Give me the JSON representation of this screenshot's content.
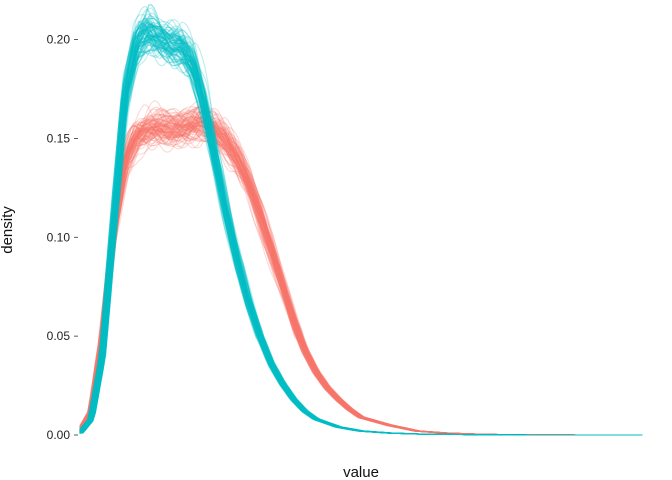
{
  "chart_data": {
    "type": "line",
    "title": "",
    "xlabel": "value",
    "ylabel": "density",
    "xlim": [
      0,
      1
    ],
    "ylim": [
      0,
      0.22
    ],
    "yticks": [
      0.0,
      0.05,
      0.1,
      0.15,
      0.2
    ],
    "ytick_labels": [
      "0.00",
      "0.05",
      "0.10",
      "0.15",
      "0.20"
    ],
    "xticks_shown": false,
    "grid": false,
    "legend": "none",
    "replicates_per_series": 100,
    "series": [
      {
        "color": "#F8766D",
        "x": [
          0.0,
          0.02,
          0.04,
          0.06,
          0.08,
          0.1,
          0.12,
          0.14,
          0.16,
          0.18,
          0.2,
          0.22,
          0.24,
          0.26,
          0.28,
          0.3,
          0.32,
          0.34,
          0.36,
          0.38,
          0.4,
          0.42,
          0.44,
          0.46,
          0.48,
          0.5,
          0.55,
          0.6,
          0.65,
          0.7,
          0.75,
          0.8,
          0.9,
          1.0
        ],
        "values": [
          0.002,
          0.012,
          0.05,
          0.104,
          0.139,
          0.151,
          0.155,
          0.156,
          0.155,
          0.156,
          0.157,
          0.158,
          0.155,
          0.149,
          0.14,
          0.128,
          0.112,
          0.094,
          0.076,
          0.058,
          0.043,
          0.032,
          0.024,
          0.018,
          0.013,
          0.009,
          0.005,
          0.002,
          0.001,
          0.0005,
          0.0002,
          0.0001,
          0.0,
          0.0
        ]
      },
      {
        "color": "#00BFC4",
        "x": [
          0.0,
          0.02,
          0.04,
          0.06,
          0.08,
          0.1,
          0.12,
          0.14,
          0.16,
          0.18,
          0.2,
          0.22,
          0.24,
          0.26,
          0.28,
          0.3,
          0.32,
          0.34,
          0.36,
          0.38,
          0.4,
          0.42,
          0.44,
          0.46,
          0.48,
          0.5,
          0.55,
          0.6,
          0.65,
          0.7,
          0.75,
          0.8,
          0.9,
          1.0
        ],
        "values": [
          0.001,
          0.008,
          0.04,
          0.108,
          0.172,
          0.198,
          0.204,
          0.2,
          0.197,
          0.196,
          0.188,
          0.168,
          0.14,
          0.112,
          0.088,
          0.067,
          0.05,
          0.036,
          0.026,
          0.018,
          0.012,
          0.008,
          0.006,
          0.004,
          0.003,
          0.002,
          0.001,
          0.0005,
          0.0003,
          0.0002,
          0.0001,
          0.0,
          0.0,
          0.0
        ]
      }
    ]
  }
}
